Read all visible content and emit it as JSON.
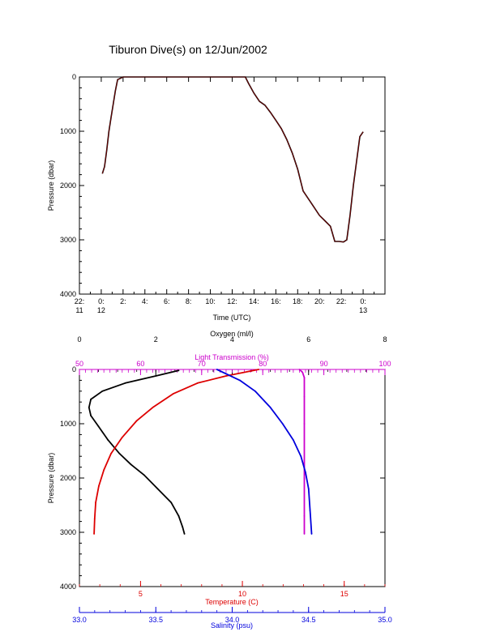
{
  "title": "Tiburon Dive(s) on 12/Jun/2002",
  "colors": {
    "axis": "#000000",
    "pressure_trace": "#000000",
    "pressure_highlight": "#cc0000",
    "oxygen": "#000000",
    "light": "#cc00cc",
    "temperature": "#dd0000",
    "salinity": "#0000dd"
  },
  "chart_data": [
    {
      "type": "line",
      "title": "Tiburon Dive(s) on 12/Jun/2002",
      "xlabel": "Time (UTC)",
      "ylabel": "Pressure (dbar)",
      "y_inverted": true,
      "xlim": [
        -2,
        26
      ],
      "ylim": [
        0,
        4000
      ],
      "x_ticks": [
        {
          "value": -2,
          "label": [
            "22:",
            "11"
          ]
        },
        {
          "value": 0,
          "label": [
            "0:",
            "12"
          ]
        },
        {
          "value": 2,
          "label": [
            "2:"
          ]
        },
        {
          "value": 4,
          "label": [
            "4:"
          ]
        },
        {
          "value": 6,
          "label": [
            "6:"
          ]
        },
        {
          "value": 8,
          "label": [
            "8:"
          ]
        },
        {
          "value": 10,
          "label": [
            "10:"
          ]
        },
        {
          "value": 12,
          "label": [
            "12:"
          ]
        },
        {
          "value": 14,
          "label": [
            "14:"
          ]
        },
        {
          "value": 16,
          "label": [
            "16:"
          ]
        },
        {
          "value": 18,
          "label": [
            "18:"
          ]
        },
        {
          "value": 20,
          "label": [
            "20:"
          ]
        },
        {
          "value": 22,
          "label": [
            "22:"
          ]
        },
        {
          "value": 24,
          "label": [
            "0:",
            "13"
          ]
        }
      ],
      "y_ticks": [
        0,
        1000,
        2000,
        3000,
        4000
      ],
      "series": [
        {
          "x": [
            0.1,
            0.3,
            0.5,
            0.7,
            0.9,
            1.1,
            1.3,
            1.5,
            2.0,
            4.0,
            8.0,
            12.0,
            13.2,
            13.5,
            14.0,
            14.5,
            15.0,
            15.5,
            16.0,
            16.5,
            17.0,
            17.5,
            18.0,
            18.5,
            19.0,
            19.5,
            20.0,
            20.5,
            21.0,
            21.4,
            21.8,
            22.2,
            22.5,
            22.8,
            23.1,
            23.4,
            23.7,
            24.0
          ],
          "y": [
            1780,
            1650,
            1350,
            1000,
            750,
            500,
            250,
            50,
            0,
            0,
            0,
            0,
            0,
            120,
            300,
            450,
            520,
            650,
            800,
            950,
            1150,
            1400,
            1700,
            2100,
            2250,
            2400,
            2550,
            2650,
            2750,
            3030,
            3030,
            3040,
            3000,
            2550,
            2000,
            1550,
            1100,
            1010
          ]
        }
      ]
    },
    {
      "type": "line",
      "ylabel": "Pressure (dbar)",
      "y_inverted": true,
      "ylim": [
        0,
        4000
      ],
      "y_ticks": [
        0,
        1000,
        2000,
        3000,
        4000
      ],
      "axes": {
        "oxygen": {
          "label": "Oxygen (ml/l)",
          "range": [
            0,
            8
          ],
          "ticks": [
            0,
            2,
            4,
            6,
            8
          ],
          "position": "top"
        },
        "light": {
          "label": "Light Transmission (%)",
          "range": [
            50,
            100
          ],
          "ticks": [
            50,
            60,
            70,
            80,
            90,
            100
          ],
          "position": "top"
        },
        "temperature": {
          "label": "Temperature (C)",
          "range": [
            2,
            17
          ],
          "ticks": [
            5,
            10,
            15
          ],
          "position": "bottom"
        },
        "salinity": {
          "label": "Salinity (psu)",
          "range": [
            33.0,
            35.0
          ],
          "ticks": [
            33.0,
            33.5,
            34.0,
            34.5,
            35.0
          ],
          "position": "bottom"
        }
      },
      "series": [
        {
          "axis": "oxygen",
          "x": [
            2.6,
            2.0,
            1.2,
            0.6,
            0.3,
            0.25,
            0.3,
            0.5,
            0.75,
            1.05,
            1.35,
            1.7,
            2.05,
            2.4,
            2.6,
            2.7,
            2.75
          ],
          "y": [
            20,
            120,
            250,
            400,
            550,
            700,
            850,
            1050,
            1300,
            1550,
            1750,
            1950,
            2200,
            2450,
            2700,
            2900,
            3030
          ]
        },
        {
          "axis": "light",
          "x": [
            86,
            86.5,
            86.8,
            86.8,
            86.8,
            86.8,
            86.8,
            86.8
          ],
          "y": [
            0,
            50,
            150,
            500,
            1000,
            2000,
            2700,
            3030
          ]
        },
        {
          "axis": "temperature",
          "x": [
            10.8,
            9.2,
            7.8,
            6.6,
            5.6,
            4.8,
            4.1,
            3.55,
            3.2,
            2.95,
            2.8,
            2.75,
            2.72
          ],
          "y": [
            0,
            120,
            250,
            450,
            700,
            950,
            1250,
            1550,
            1850,
            2150,
            2450,
            2750,
            3030
          ]
        },
        {
          "axis": "salinity",
          "x": [
            33.9,
            34.05,
            34.15,
            34.25,
            34.33,
            34.4,
            34.45,
            34.48,
            34.5,
            34.51,
            34.52
          ],
          "y": [
            0,
            200,
            400,
            700,
            1000,
            1300,
            1600,
            1900,
            2200,
            2600,
            3030
          ]
        }
      ]
    }
  ]
}
